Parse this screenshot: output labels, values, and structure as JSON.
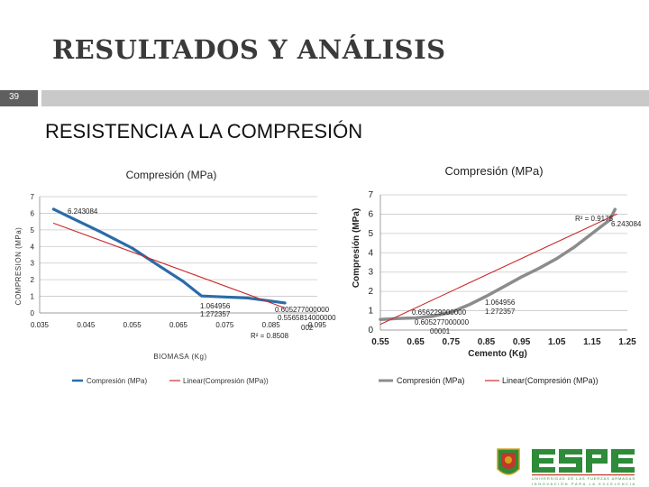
{
  "slide": {
    "title": "RESULTADOS Y ANÁLISIS",
    "number": "39",
    "heading": "RESISTENCIA A LA COMPRESIÓN"
  },
  "logo": {
    "name": "ESPE",
    "tagline1": "UNIVERSIDAD DE LAS FUERZAS ARMADAS",
    "tagline2": "INNOVACIÓN PARA LA EXCELENCIA",
    "colors": {
      "green": "#2e8b3a",
      "red": "#c0392b",
      "gold": "#d4a017"
    }
  },
  "chart_data": [
    {
      "type": "line",
      "title": "Compresión (MPa)",
      "xlabel": "BIOMASA (Kg)",
      "ylabel": "COMPRESION (MPa)",
      "xlim": [
        0.035,
        0.095
      ],
      "ylim": [
        0,
        7
      ],
      "x_ticks": [
        "0.035",
        "0.045",
        "0.055",
        "0.065",
        "0.075",
        "0.085",
        "0.095"
      ],
      "y_ticks": [
        "0",
        "1",
        "2",
        "3",
        "4",
        "5",
        "6",
        "7"
      ],
      "series": [
        {
          "name": "Compresión (MPa)",
          "color": "#2a6ca8",
          "x": [
            0.038,
            0.042,
            0.048,
            0.055,
            0.061,
            0.066,
            0.07,
            0.08,
            0.088
          ],
          "y": [
            6.243084,
            5.7,
            4.9,
            3.9,
            2.8,
            1.9,
            1.02,
            0.9,
            0.6
          ]
        },
        {
          "name": "Linear(Compresión (MPa))",
          "color": "#cc2b2b",
          "x": [
            0.038,
            0.088
          ],
          "y": [
            5.4,
            0.3
          ]
        }
      ],
      "data_labels": [
        "6.243084",
        "1.064956",
        "1.272357",
        "0.605277000000",
        "0.5565814000000",
        "002"
      ],
      "annotations": [
        "R² = 0.8508"
      ],
      "grid": true,
      "legend": "bottom"
    },
    {
      "type": "line",
      "title": "Compresión (MPa)",
      "xlabel": "Cemento (Kg)",
      "ylabel": "Compresión (MPa)",
      "xlim": [
        0.55,
        1.25
      ],
      "ylim": [
        0,
        7
      ],
      "x_ticks": [
        "0.55",
        "0.65",
        "0.75",
        "0.85",
        "0.95",
        "1.05",
        "1.15",
        "1.25"
      ],
      "y_ticks": [
        "0",
        "1",
        "2",
        "3",
        "4",
        "5",
        "6",
        "7"
      ],
      "series": [
        {
          "name": "Compresión (MPa)",
          "color": "#8c8c8c",
          "x": [
            0.55,
            0.6,
            0.65,
            0.7,
            0.75,
            0.8,
            0.85,
            0.9,
            0.95,
            1.0,
            1.05,
            1.1,
            1.15,
            1.2,
            1.215
          ],
          "y": [
            0.55,
            0.6,
            0.63,
            0.72,
            0.92,
            1.3,
            1.75,
            2.25,
            2.75,
            3.2,
            3.7,
            4.3,
            5.0,
            5.7,
            6.243084
          ]
        },
        {
          "name": "Linear(Compresión (MPa))",
          "color": "#cc2b2b",
          "x": [
            0.55,
            1.22
          ],
          "y": [
            0.3,
            6.0
          ]
        }
      ],
      "data_labels": [
        "6.243084",
        "1.064956",
        "1.272357",
        "0.656229000000",
        "0.605277000000",
        "00001"
      ],
      "annotations": [
        "R² = 0.9175"
      ],
      "grid": true,
      "legend": "bottom"
    }
  ]
}
